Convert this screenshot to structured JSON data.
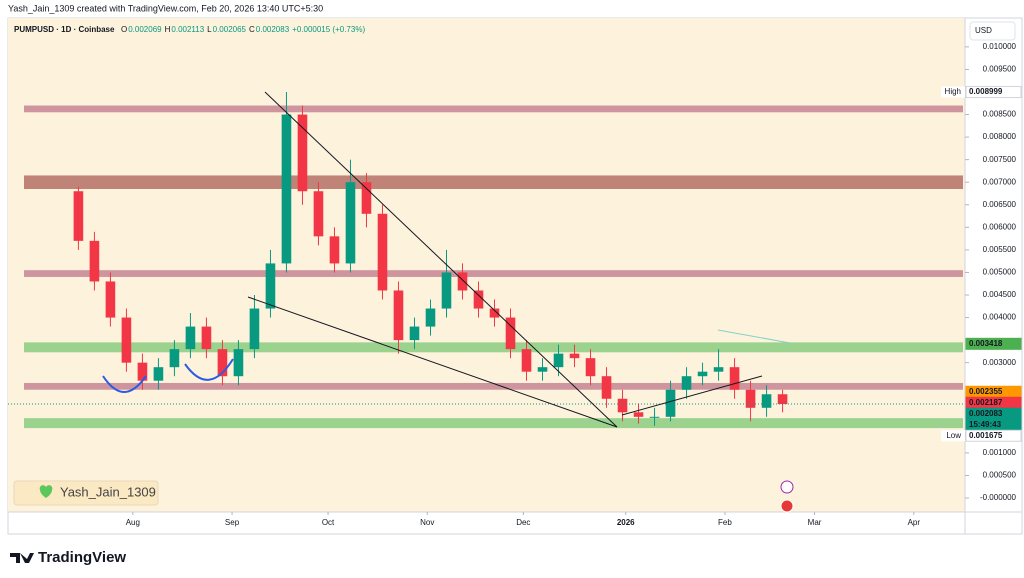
{
  "header": {
    "credit": "Yash_Jain_1309 created with TradingView.com, Feb 20, 2026 13:40 UTC+5:30",
    "watermark": "Yash_Jain_1309",
    "logo": "TradingView"
  },
  "chart_data": {
    "type": "candlestick",
    "title": "PUMPUSD · 1D · Coinbase",
    "ohlc_legend": [
      {
        "key": "O",
        "value": "0.002069"
      },
      {
        "key": "H",
        "value": "0.002113"
      },
      {
        "key": "L",
        "value": "0.002065"
      },
      {
        "key": "C",
        "value": "0.002083"
      }
    ],
    "change": "+0.000015 (+0.73%)",
    "currency": "USD",
    "up_color": "#089981",
    "down_color": "#f23645",
    "x": [
      0,
      5,
      10,
      15,
      20,
      25,
      30,
      35,
      40,
      45,
      50,
      55,
      60,
      65,
      70,
      75,
      80,
      85,
      90,
      95,
      100,
      105,
      110,
      115,
      120,
      125,
      130,
      135,
      140,
      145,
      150,
      155,
      160,
      165,
      170,
      175,
      180,
      185,
      190,
      195,
      200,
      205,
      210,
      215,
      220
    ],
    "open": [
      0.0068,
      0.0057,
      0.0048,
      0.004,
      0.003,
      0.0026,
      0.0029,
      0.0033,
      0.0038,
      0.0033,
      0.0027,
      0.0033,
      0.0042,
      0.0052,
      0.0085,
      0.0068,
      0.0058,
      0.0052,
      0.007,
      0.0063,
      0.0046,
      0.0035,
      0.0038,
      0.0042,
      0.005,
      0.0046,
      0.0042,
      0.004,
      0.0033,
      0.0028,
      0.0029,
      0.0032,
      0.0031,
      0.0027,
      0.0022,
      0.0019,
      0.0018,
      0.0018,
      0.0024,
      0.0027,
      0.0028,
      0.0029,
      0.0024,
      0.002,
      0.0023
    ],
    "high": [
      0.0069,
      0.0059,
      0.005,
      0.0042,
      0.0032,
      0.0031,
      0.0035,
      0.0041,
      0.004,
      0.0035,
      0.0035,
      0.0045,
      0.0055,
      0.009,
      0.0087,
      0.007,
      0.006,
      0.0075,
      0.0072,
      0.0065,
      0.0048,
      0.004,
      0.0044,
      0.0055,
      0.0052,
      0.0048,
      0.0044,
      0.0042,
      0.0035,
      0.0031,
      0.0034,
      0.0034,
      0.0033,
      0.0029,
      0.0024,
      0.0021,
      0.002,
      0.0026,
      0.0029,
      0.003,
      0.0033,
      0.0031,
      0.0026,
      0.0025,
      0.0024
    ],
    "low": [
      0.0055,
      0.0046,
      0.0038,
      0.0028,
      0.0024,
      0.0024,
      0.0027,
      0.0031,
      0.0031,
      0.0025,
      0.0025,
      0.0031,
      0.004,
      0.005,
      0.0065,
      0.0056,
      0.005,
      0.005,
      0.006,
      0.0044,
      0.0032,
      0.0033,
      0.0036,
      0.004,
      0.0044,
      0.004,
      0.0038,
      0.0031,
      0.0026,
      0.0026,
      0.0027,
      0.0029,
      0.0025,
      0.002,
      0.0017,
      0.00165,
      0.0016,
      0.0017,
      0.0022,
      0.0025,
      0.0026,
      0.0022,
      0.0017,
      0.0018,
      0.0019
    ],
    "close": [
      0.0057,
      0.0048,
      0.004,
      0.003,
      0.0026,
      0.0029,
      0.0033,
      0.0038,
      0.0033,
      0.0027,
      0.0033,
      0.0042,
      0.0052,
      0.0085,
      0.0068,
      0.0058,
      0.0052,
      0.007,
      0.0063,
      0.0046,
      0.0035,
      0.0038,
      0.0042,
      0.005,
      0.0046,
      0.0042,
      0.004,
      0.0033,
      0.0028,
      0.0029,
      0.0032,
      0.0031,
      0.0027,
      0.0022,
      0.0019,
      0.0018,
      0.0018,
      0.0024,
      0.0027,
      0.0028,
      0.0029,
      0.0024,
      0.002,
      0.0023,
      0.002083
    ],
    "xlim": [
      -22,
      277
    ],
    "xticks": [
      {
        "value": 17,
        "label": "Aug"
      },
      {
        "value": 48,
        "label": "Sep"
      },
      {
        "value": 78,
        "label": "Oct"
      },
      {
        "value": 109,
        "label": "Nov"
      },
      {
        "value": 139,
        "label": "Dec"
      },
      {
        "value": 171,
        "label": "2026"
      },
      {
        "value": 202,
        "label": "Feb"
      },
      {
        "value": 230,
        "label": "Mar"
      },
      {
        "value": 261,
        "label": "Apr"
      }
    ],
    "ylim": [
      -0.00031,
      0.01064
    ],
    "yticks": [
      {
        "value": 0.01,
        "label": "0.010000"
      },
      {
        "value": 0.0095,
        "label": "0.009500"
      },
      {
        "value": 0.0085,
        "label": "0.008500"
      },
      {
        "value": 0.008,
        "label": "0.008000"
      },
      {
        "value": 0.0075,
        "label": "0.007500"
      },
      {
        "value": 0.007,
        "label": "0.007000"
      },
      {
        "value": 0.0065,
        "label": "0.006500"
      },
      {
        "value": 0.006,
        "label": "0.006000"
      },
      {
        "value": 0.0055,
        "label": "0.005500"
      },
      {
        "value": 0.005,
        "label": "0.005000"
      },
      {
        "value": 0.0045,
        "label": "0.004500"
      },
      {
        "value": 0.004,
        "label": "0.004000"
      },
      {
        "value": 0.003,
        "label": "0.003000"
      },
      {
        "value": 0.001,
        "label": "0.001000"
      },
      {
        "value": 0.0005,
        "label": "0.000500"
      },
      {
        "value": 0,
        "label": "-0.000000"
      }
    ],
    "zones": [
      {
        "bottom": 0.00855,
        "top": 0.0087,
        "color": "#c98b97"
      },
      {
        "bottom": 0.00685,
        "top": 0.00715,
        "color": "#b9776c"
      },
      {
        "bottom": 0.0049,
        "top": 0.00505,
        "color": "#c98b97"
      },
      {
        "bottom": 0.00323,
        "top": 0.00345,
        "color": "#90cf85"
      },
      {
        "bottom": 0.0024,
        "top": 0.00255,
        "color": "#c98b97"
      },
      {
        "bottom": 0.00155,
        "top": 0.00177,
        "color": "#90cf85"
      }
    ],
    "price_badges": [
      {
        "tag": "High",
        "value": 0.008999,
        "label": "0.008999",
        "color": "#ffffff",
        "text_color": "#131722"
      },
      {
        "value": 0.003418,
        "label": "0.003418",
        "color": "#4caf50",
        "text_color": "#ffffff"
      },
      {
        "value": 0.002355,
        "label": "0.002355",
        "color": "#ff9800",
        "text_color": "#ffffff"
      },
      {
        "value": 0.002187,
        "label": "0.002187",
        "color": "#f23645",
        "text_color": "#ffffff"
      },
      {
        "value": 0.002083,
        "label": "0.002083",
        "sub": "15:49:43",
        "color": "#089981",
        "text_color": "#ffffff"
      },
      {
        "tag": "Low",
        "value": 0.001675,
        "label": "0.001675",
        "color": "#ffffff",
        "text_color": "#131722"
      }
    ]
  }
}
